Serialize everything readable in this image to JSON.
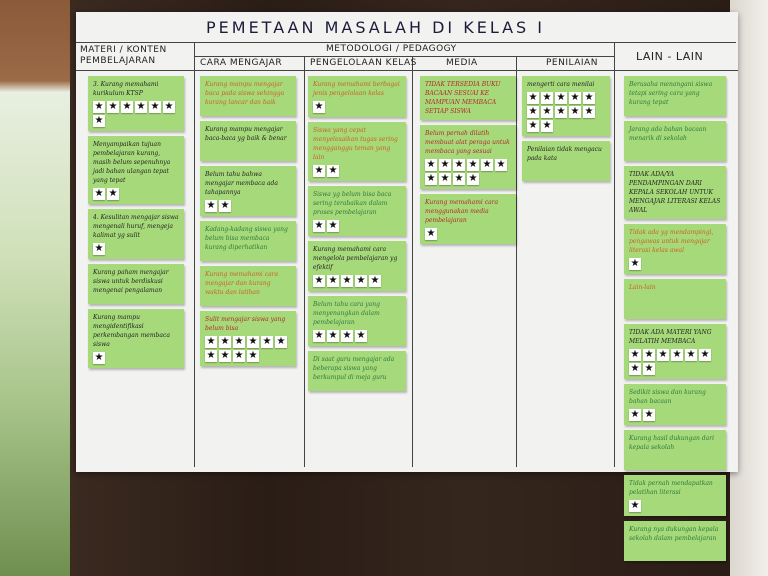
{
  "poster": {
    "title": "PEMETAAN MASALAH DI KELAS I",
    "headers": {
      "materi": "MATERI / KONTEN PEMBELAJARAN",
      "metodologi": "METODOLOGI / PEDAGOGY",
      "cara_mengajar": "CARA MENGAJAR",
      "pengelolaan_kelas": "PENGELOLAAN KELAS",
      "media": "MEDIA",
      "penilaian": "PENILAIAN",
      "lain_lain": "LAIN - LAIN"
    }
  },
  "colors": {
    "note": "#a6d97a",
    "poster": "#f2f2f0",
    "ink_orange": "#c8641e",
    "ink_green": "#2e7a3a",
    "ink_red": "#b42828",
    "ink_dark": "#222222"
  },
  "notes": [
    {
      "column": "materi",
      "text": "3. Kurang memahami kurikulum KTSP",
      "ink": "#222222",
      "stars": 7
    },
    {
      "column": "materi",
      "text": "Menyampaikan tujuan pembelajaran kurang, masih belum sepenuhnya jadi bahan ulangan tepat yang tepat",
      "ink": "#222222",
      "stars": 2
    },
    {
      "column": "materi",
      "text": "4. Kesulitan mengajar siswa mengenali huruf, mengeja kalimat yg sulit",
      "ink": "#222222",
      "stars": 1
    },
    {
      "column": "materi",
      "text": "Kurang paham mengajar siswa untuk berdiskusi mengenai pengalaman",
      "ink": "#222222",
      "stars": 0
    },
    {
      "column": "materi",
      "text": "Kurang mampu mengidentifikasi perkembangan membaca siswa",
      "ink": "#222222",
      "stars": 1
    },
    {
      "column": "cara",
      "text": "Kurang mampu mengajar baca pada siswa sehingga kurang lancar dan baik",
      "ink": "#c8641e",
      "stars": 0
    },
    {
      "column": "cara",
      "text": "Kurang mampu mengajar baca-baca yg baik & benar",
      "ink": "#222222",
      "stars": 0
    },
    {
      "column": "cara",
      "text": "Belum tahu bahwa mengajar membaca ada tahapannya",
      "ink": "#222222",
      "stars": 2
    },
    {
      "column": "cara",
      "text": "Kadang-kadang siswa yang belum bisa membaca kurang diperhatikan",
      "ink": "#2e7a3a",
      "stars": 0
    },
    {
      "column": "cara",
      "text": "Kurang memahami cara mengajar dan kurang waktu dan latihan",
      "ink": "#c8641e",
      "stars": 0
    },
    {
      "column": "cara",
      "text": "Sulit mengajar siswa yang belum bisa",
      "ink": "#b42828",
      "stars": 10
    },
    {
      "column": "pengelolaan",
      "text": "Kurang memahami berbagai jenis pengelolaan kelas",
      "ink": "#c8641e",
      "stars": 1
    },
    {
      "column": "pengelolaan",
      "text": "Siswa yang cepat menyelesaikan tugas sering mengganggu teman yang lain",
      "ink": "#c8641e",
      "stars": 2
    },
    {
      "column": "pengelolaan",
      "text": "Siswa yg belum bisa baca sering terabaikan dalam proses pembelajaran",
      "ink": "#2e7a3a",
      "stars": 2
    },
    {
      "column": "pengelolaan",
      "text": "Kurang memahami cara mengelola pembelajaran yg efektif",
      "ink": "#222222",
      "stars": 5
    },
    {
      "column": "pengelolaan",
      "text": "Belum tahu cara yang menyenangkan dalam pembelajaran",
      "ink": "#2e7a3a",
      "stars": 4
    },
    {
      "column": "pengelolaan",
      "text": "Di saat guru mengajar ada beberapa siswa yang berkumpul di meja guru",
      "ink": "#2e7a3a",
      "stars": 0
    },
    {
      "column": "media",
      "text": "TIDAK TERSEDIA BUKU BACAAN SESUAI KE MAMPUAN MEMBACA SETIAP SISWA",
      "ink": "#b42828",
      "stars": 0
    },
    {
      "column": "media",
      "text": "Belum pernah dilatih membuat alat peraga untuk membaca yang sesuai",
      "ink": "#b42828",
      "stars": 10
    },
    {
      "column": "media",
      "text": "Kurang memahami cara menggunakan media pembelajaran",
      "ink": "#b42828",
      "stars": 1
    },
    {
      "column": "penilaian",
      "text": "mengerti cara menilai",
      "ink": "#222222",
      "stars": 12
    },
    {
      "column": "penilaian",
      "text": "Penilaian tidak mengacu pada kata",
      "ink": "#222222",
      "stars": 0
    },
    {
      "column": "lain",
      "text": "Berusaha menangani siswa tetapi sering cara yang kurang tepat",
      "ink": "#2e7a3a",
      "stars": 0
    },
    {
      "column": "lain",
      "text": "Jarang ada bahan bacaan menarik di sekolah",
      "ink": "#2e7a3a",
      "stars": 0
    },
    {
      "column": "lain",
      "text": "TIDAK ADA/YA PENDAMPINGAN DARI KEPALA SEKOLAH UNTUK MENGAJAR LITERASI KELAS AWAL",
      "ink": "#222222",
      "stars": 0
    },
    {
      "column": "lain",
      "text": "Tidak ada yg mendampingi, pengawas untuk mengajar literasi kelas awal",
      "ink": "#c8641e",
      "stars": 1
    },
    {
      "column": "lain",
      "text": "Lain-lain",
      "ink": "#c8641e",
      "stars": 0
    },
    {
      "column": "lain",
      "text": "TIDAK ADA MATERI YANG MELATIH MEMBACA",
      "ink": "#222222",
      "stars": 8
    },
    {
      "column": "lain",
      "text": "Sedikit siswa dan kurang bahan bacaan",
      "ink": "#2e7a3a",
      "stars": 2
    },
    {
      "column": "lain",
      "text": "Kurang hasil dukungan dari kepala sekolah",
      "ink": "#2e7a3a",
      "stars": 0
    },
    {
      "column": "lain",
      "text": "Tidak pernah mendapatkan pelatihan literasi",
      "ink": "#2e7a3a",
      "stars": 1
    },
    {
      "column": "lain",
      "text": "Kurang nya dukungan kepala sekolah dalam pembelajaran",
      "ink": "#2e7a3a",
      "stars": 0
    }
  ]
}
